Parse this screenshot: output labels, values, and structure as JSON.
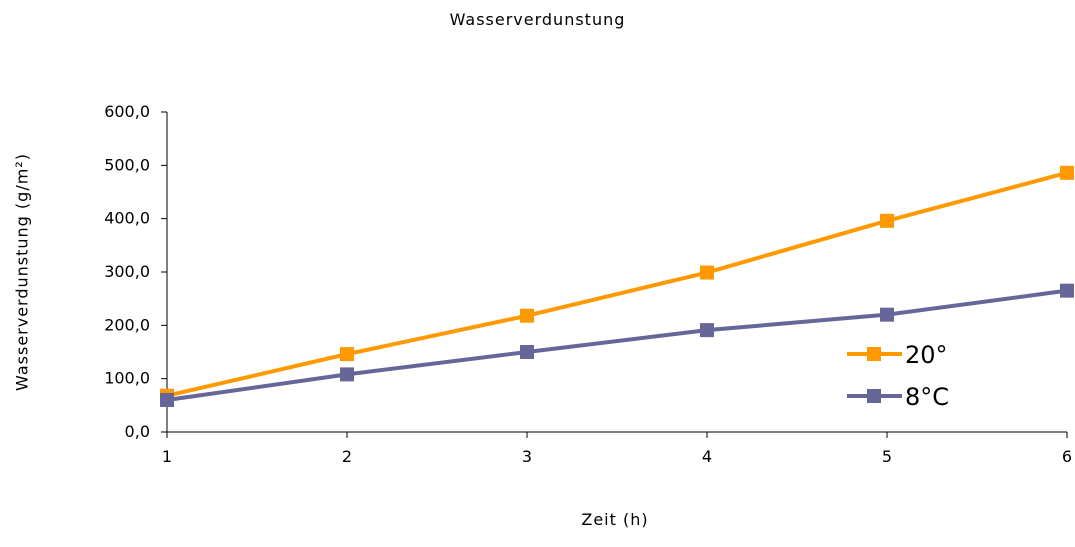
{
  "chart_data": {
    "type": "line",
    "title": "Wasserverdunstung",
    "xlabel": "Zeit (h)",
    "ylabel": "Wasserverdunstung  (g/m²)",
    "x": [
      1,
      2,
      3,
      4,
      5,
      6
    ],
    "x_tick_labels": [
      "1",
      "2",
      "3",
      "4",
      "5",
      "6"
    ],
    "y_tick_labels": [
      "0,0",
      "100,0",
      "200,0",
      "300,0",
      "400,0",
      "500,0",
      "600,0"
    ],
    "ylim": [
      0,
      600
    ],
    "grid": false,
    "legend_position": "right",
    "series": [
      {
        "name": "20°",
        "color": "#FF9900",
        "values": [
          68,
          146,
          218,
          299,
          396,
          486
        ]
      },
      {
        "name": "8°C",
        "color": "#666699",
        "values": [
          60,
          108,
          150,
          191,
          220,
          265
        ]
      }
    ]
  }
}
